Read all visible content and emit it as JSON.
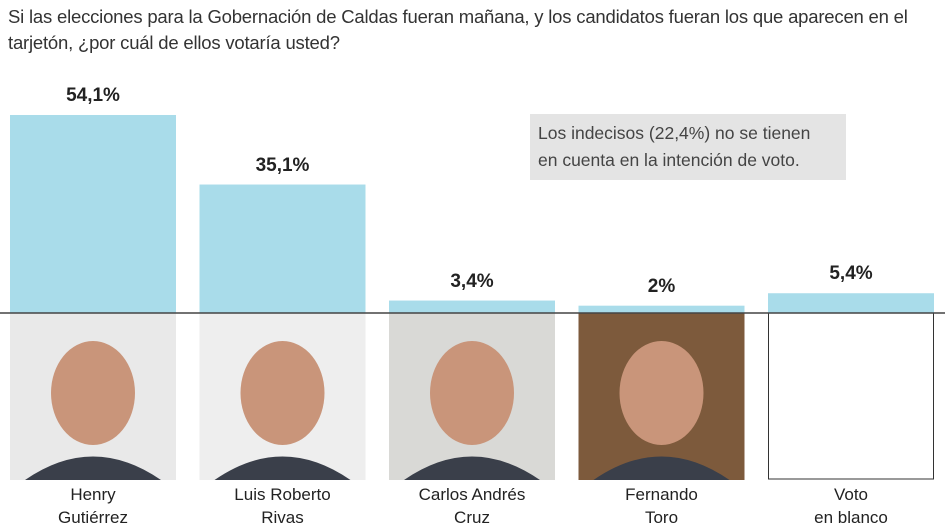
{
  "chart_data": {
    "type": "bar",
    "title": "Si las elecciones para la Gobernación de Caldas fueran mañana, y los candidatos fueran los que aparecen en el tarjetón, ¿por cuál de ellos votaría usted?",
    "categories": [
      "Henry\nGutiérrez",
      "Luis Roberto\nRivas",
      "Carlos Andrés\nCruz",
      "Fernando\nToro",
      "Voto\nen blanco"
    ],
    "values": [
      54.1,
      35.1,
      3.4,
      2,
      5.4
    ],
    "value_labels": [
      "54,1%",
      "35,1%",
      "3,4%",
      "2%",
      "5,4%"
    ],
    "color": "#a9dcea",
    "annotation": "Los indecisos (22,4%) no se tienen\nen cuenta en la intención de voto."
  }
}
